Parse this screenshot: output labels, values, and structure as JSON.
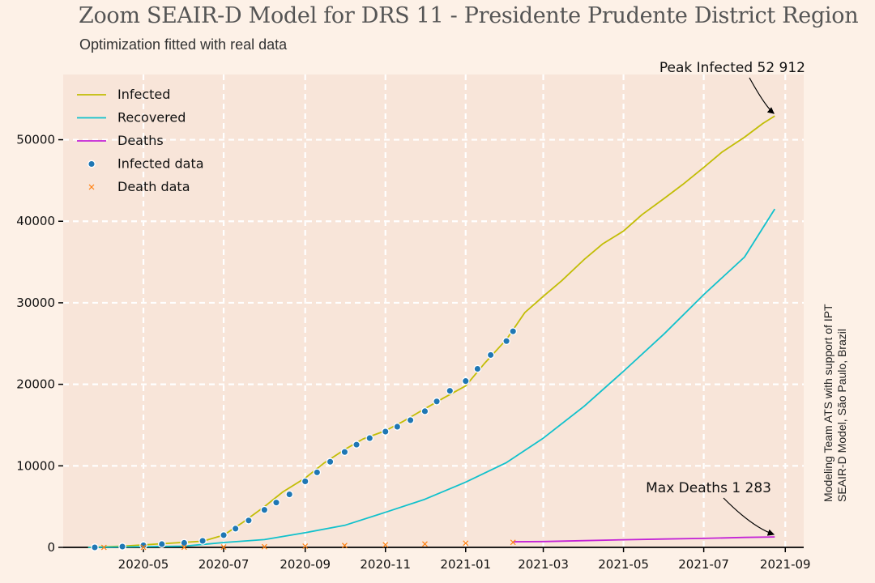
{
  "title": "Zoom SEAIR-D Model for DRS 11 - Presidente Prudente District Region",
  "subtitle": "Optimization fitted with real data",
  "credit_line1": "Modeling Team ATS with support of IPT",
  "credit_line2": "SEAIR-D Model, São Paulo, Brazil",
  "colors": {
    "background": "#fdf1e7",
    "plot_area": "#f8e5d9",
    "infected": "#c2bd06",
    "recovered": "#11c1cc",
    "deaths": "#c423d6",
    "infected_data": "#1f77b4",
    "death_data": "#ff7f0e",
    "grid": "#ffffff"
  },
  "chart_data": {
    "type": "line",
    "title": "Zoom SEAIR-D Model for DRS 11 - Presidente Prudente District Region",
    "subtitle": "Optimization fitted with real data",
    "xlabel": "",
    "ylabel": "",
    "xlim": [
      "2020-03-01",
      "2021-09-15"
    ],
    "ylim": [
      0,
      58000
    ],
    "grid": true,
    "legend_position": "upper-left",
    "x_ticks": [
      "2020-05",
      "2020-07",
      "2020-09",
      "2020-11",
      "2021-01",
      "2021-03",
      "2021-05",
      "2021-07",
      "2021-09"
    ],
    "y_ticks": [
      0,
      10000,
      20000,
      30000,
      40000,
      50000
    ],
    "legend": [
      "Infected",
      "Recovered",
      "Deaths",
      "Infected data",
      "Death data"
    ],
    "series": [
      {
        "name": "Infected",
        "kind": "line",
        "points": [
          [
            "2020-03-20",
            0
          ],
          [
            "2020-04-15",
            150
          ],
          [
            "2020-05-15",
            450
          ],
          [
            "2020-06-15",
            750
          ],
          [
            "2020-07-01",
            1500
          ],
          [
            "2020-07-15",
            3000
          ],
          [
            "2020-08-01",
            5000
          ],
          [
            "2020-08-15",
            6800
          ],
          [
            "2020-09-01",
            8500
          ],
          [
            "2020-09-15",
            10300
          ],
          [
            "2020-10-01",
            12000
          ],
          [
            "2020-10-15",
            13300
          ],
          [
            "2020-11-01",
            14300
          ],
          [
            "2020-11-15",
            15500
          ],
          [
            "2020-12-01",
            17000
          ],
          [
            "2020-12-15",
            18300
          ],
          [
            "2021-01-01",
            19800
          ],
          [
            "2021-01-15",
            22500
          ],
          [
            "2021-02-01",
            25500
          ],
          [
            "2021-02-15",
            28800
          ],
          [
            "2021-03-01",
            30800
          ],
          [
            "2021-03-15",
            32700
          ],
          [
            "2021-04-01",
            35300
          ],
          [
            "2021-04-15",
            37200
          ],
          [
            "2021-05-01",
            38800
          ],
          [
            "2021-05-15",
            40800
          ],
          [
            "2021-06-01",
            42800
          ],
          [
            "2021-06-15",
            44500
          ],
          [
            "2021-07-01",
            46600
          ],
          [
            "2021-07-15",
            48500
          ],
          [
            "2021-08-01",
            50300
          ],
          [
            "2021-08-15",
            52000
          ],
          [
            "2021-08-24",
            52912
          ]
        ]
      },
      {
        "name": "Recovered",
        "kind": "line",
        "points": [
          [
            "2020-03-20",
            0
          ],
          [
            "2020-06-01",
            150
          ],
          [
            "2020-07-01",
            600
          ],
          [
            "2020-08-01",
            950
          ],
          [
            "2020-09-01",
            1800
          ],
          [
            "2020-10-01",
            2700
          ],
          [
            "2020-11-01",
            4300
          ],
          [
            "2020-12-01",
            5900
          ],
          [
            "2021-01-01",
            8000
          ],
          [
            "2021-02-01",
            10400
          ],
          [
            "2021-03-01",
            13400
          ],
          [
            "2021-04-01",
            17300
          ],
          [
            "2021-05-01",
            21600
          ],
          [
            "2021-06-01",
            26200
          ],
          [
            "2021-07-01",
            31000
          ],
          [
            "2021-08-01",
            35600
          ],
          [
            "2021-08-24",
            41500
          ]
        ]
      },
      {
        "name": "Deaths",
        "kind": "line",
        "points": [
          [
            "2021-02-06",
            690
          ],
          [
            "2021-03-01",
            720
          ],
          [
            "2021-04-01",
            820
          ],
          [
            "2021-05-01",
            930
          ],
          [
            "2021-06-01",
            1020
          ],
          [
            "2021-07-01",
            1100
          ],
          [
            "2021-08-01",
            1220
          ],
          [
            "2021-08-24",
            1283
          ]
        ]
      },
      {
        "name": "Infected data",
        "kind": "scatter",
        "points": [
          [
            "2020-03-25",
            0
          ],
          [
            "2020-04-15",
            100
          ],
          [
            "2020-05-01",
            250
          ],
          [
            "2020-05-15",
            400
          ],
          [
            "2020-06-01",
            550
          ],
          [
            "2020-06-15",
            800
          ],
          [
            "2020-07-01",
            1500
          ],
          [
            "2020-07-10",
            2300
          ],
          [
            "2020-07-20",
            3300
          ],
          [
            "2020-08-01",
            4600
          ],
          [
            "2020-08-10",
            5500
          ],
          [
            "2020-08-20",
            6500
          ],
          [
            "2020-09-01",
            8100
          ],
          [
            "2020-09-10",
            9200
          ],
          [
            "2020-09-20",
            10500
          ],
          [
            "2020-10-01",
            11700
          ],
          [
            "2020-10-10",
            12600
          ],
          [
            "2020-10-20",
            13400
          ],
          [
            "2020-11-01",
            14200
          ],
          [
            "2020-11-10",
            14800
          ],
          [
            "2020-11-20",
            15600
          ],
          [
            "2020-12-01",
            16700
          ],
          [
            "2020-12-10",
            17900
          ],
          [
            "2020-12-20",
            19200
          ],
          [
            "2021-01-01",
            20400
          ],
          [
            "2021-01-10",
            21900
          ],
          [
            "2021-01-20",
            23600
          ],
          [
            "2021-02-01",
            25300
          ],
          [
            "2021-02-06",
            26500
          ]
        ]
      },
      {
        "name": "Death data",
        "kind": "scatter",
        "points": [
          [
            "2020-04-01",
            0
          ],
          [
            "2020-05-01",
            10
          ],
          [
            "2020-06-01",
            20
          ],
          [
            "2020-07-01",
            40
          ],
          [
            "2020-08-01",
            80
          ],
          [
            "2020-09-01",
            150
          ],
          [
            "2020-10-01",
            230
          ],
          [
            "2020-11-01",
            320
          ],
          [
            "2020-12-01",
            420
          ],
          [
            "2021-01-01",
            520
          ],
          [
            "2021-02-06",
            620
          ]
        ]
      }
    ],
    "annotations": [
      {
        "text": "Peak Infected 52 912",
        "date": "2021-08-24",
        "value": 52912
      },
      {
        "text": "Max Deaths 1 283",
        "date": "2021-08-24",
        "value": 1283
      }
    ]
  }
}
